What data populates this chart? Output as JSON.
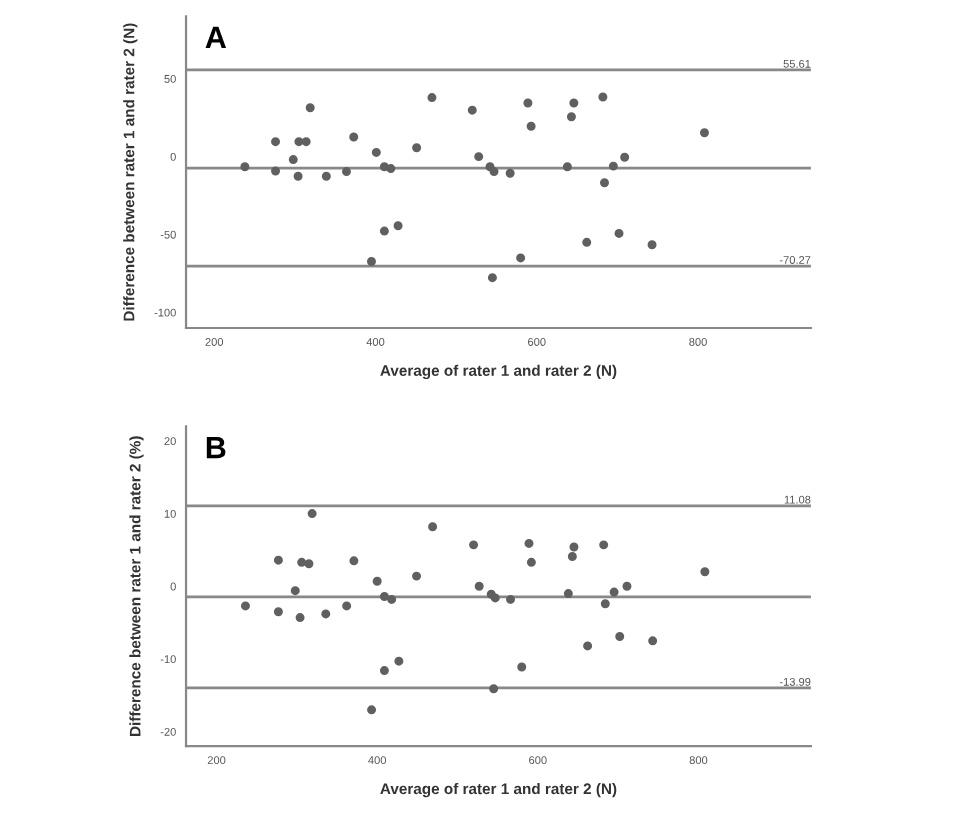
{
  "chart_data": [
    {
      "type": "scatter",
      "xlabel": "Average of rater 1 and rater 2 (N)",
      "ylabel": "Difference between rater 1 and rater 2 (N)",
      "annotations": [
        "A"
      ],
      "x": [
        238,
        276,
        276,
        298,
        304,
        305,
        314,
        319,
        339,
        364,
        373,
        395,
        401,
        411,
        411,
        419,
        428,
        451,
        470,
        520,
        528,
        542,
        545,
        547,
        567,
        580,
        589,
        593,
        638,
        643,
        646,
        662,
        682,
        684,
        695,
        702,
        709,
        743,
        808
      ],
      "series": [
        {
          "color": "#606060",
          "values": [
            -6.5,
            9.6,
            -9.2,
            -1.9,
            -12.6,
            9.6,
            9.6,
            31.4,
            -12.6,
            -9.6,
            12.6,
            -67.3,
            2.7,
            -47.8,
            -6.5,
            -7.7,
            -44.4,
            5.7,
            37.9,
            29.8,
            0,
            -6.5,
            -77.7,
            -9.6,
            -10.7,
            -65,
            34.4,
            19.5,
            -6.5,
            25.6,
            34.4,
            -55,
            38.3,
            -16.8,
            -6.1,
            -49.3,
            -0.4,
            -56.6,
            15.3
          ]
        }
      ],
      "marker": "circle",
      "xlim": [
        165,
        940
      ],
      "ylim": [
        -110,
        90
      ],
      "xticks": [
        200,
        400,
        600,
        800
      ],
      "yticks": [
        -100,
        -50,
        0,
        50
      ],
      "grid": false,
      "legend": false,
      "ref_lines": [
        {
          "axis": "y",
          "value": 55.61,
          "label": "55.61",
          "color": "#888888"
        },
        {
          "axis": "y",
          "value": -7.33,
          "label": null,
          "color": "#888888"
        },
        {
          "axis": "y",
          "value": -70.27,
          "label": "-70.27",
          "color": "#888888"
        }
      ]
    },
    {
      "type": "scatter",
      "xlabel": "Average of rater 1 and rater 2 (N)",
      "ylabel": "Difference between rater 1 and rater 2 (%)",
      "annotations": [
        "B"
      ],
      "x": [
        236,
        277,
        277,
        298,
        304,
        306,
        315,
        319,
        336,
        362,
        371,
        393,
        400,
        409,
        409,
        418,
        427,
        449,
        469,
        520,
        527,
        542,
        545,
        547,
        566,
        580,
        589,
        592,
        638,
        643,
        645,
        662,
        682,
        684,
        695,
        702,
        711,
        743,
        808
      ],
      "series": [
        {
          "color": "#606060",
          "values": [
            -2.7,
            3.6,
            -3.5,
            -0.6,
            -4.3,
            3.3,
            3.1,
            10.0,
            -3.8,
            -2.7,
            3.5,
            -17.0,
            0.7,
            -11.6,
            -1.4,
            -1.8,
            -10.3,
            1.4,
            8.2,
            5.7,
            0,
            -1.1,
            -14.1,
            -1.6,
            -1.8,
            -11.1,
            5.9,
            3.3,
            -1.0,
            4.1,
            5.4,
            -8.2,
            5.7,
            -2.4,
            -0.8,
            -6.9,
            0,
            -7.5,
            2.0
          ]
        }
      ],
      "marker": "circle",
      "xlim": [
        162,
        940
      ],
      "ylim": [
        -22,
        22
      ],
      "xticks": [
        200,
        400,
        600,
        800
      ],
      "yticks": [
        -20,
        -10,
        0,
        10,
        20
      ],
      "grid": false,
      "legend": false,
      "ref_lines": [
        {
          "axis": "y",
          "value": 11.08,
          "label": "11.08",
          "color": "#888888"
        },
        {
          "axis": "y",
          "value": -1.46,
          "label": null,
          "color": "#888888"
        },
        {
          "axis": "y",
          "value": -13.99,
          "label": "-13.99",
          "color": "#888888"
        }
      ]
    }
  ]
}
